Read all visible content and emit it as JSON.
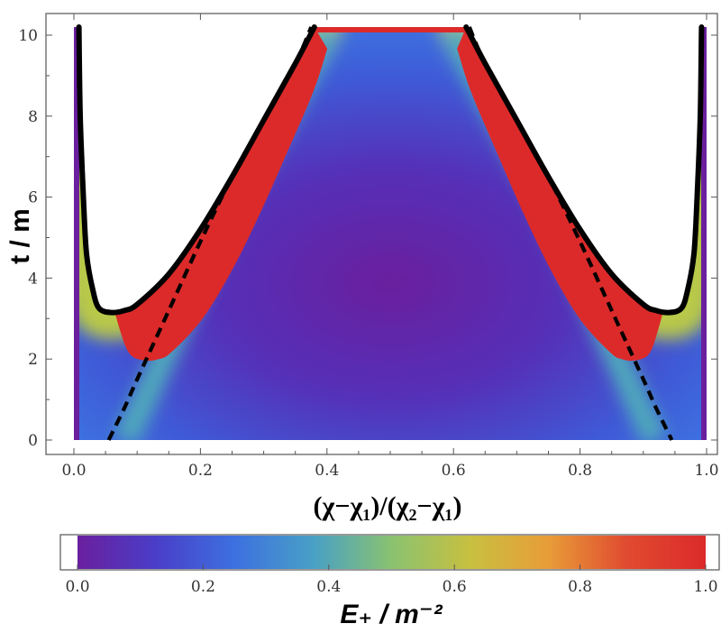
{
  "chart_data": {
    "type": "heatmap",
    "title": "",
    "xlabel": "(χ−χ₁)/(χ₂−χ₁)",
    "ylabel": "t / m",
    "xlim": [
      0,
      1
    ],
    "ylim": [
      0,
      10.2
    ],
    "x_ticks": [
      "0.0",
      "0.2",
      "0.4",
      "0.6",
      "0.8",
      "1.0"
    ],
    "y_ticks": [
      "0",
      "2",
      "4",
      "6",
      "8",
      "10"
    ],
    "colorbar": {
      "label": "E₊ / m⁻²",
      "range": [
        0,
        1
      ],
      "ticks": [
        "0.0",
        "0.2",
        "0.4",
        "0.6",
        "0.8",
        "1.0"
      ],
      "colormap": [
        "#6a1f9e",
        "#4a3ec8",
        "#3d70e0",
        "#48a0c6",
        "#8ac270",
        "#c8c040",
        "#e89c38",
        "#e04a30",
        "#dc2a2a"
      ]
    },
    "series": [
      {
        "style": "solid",
        "color": "#000000",
        "x": [
          0.008,
          0.01,
          0.015,
          0.02,
          0.03,
          0.04,
          0.06,
          0.08,
          0.1,
          0.15,
          0.2,
          0.25,
          0.3,
          0.35,
          0.38
        ],
        "y": [
          10.2,
          8.0,
          6.0,
          4.6,
          3.7,
          3.25,
          3.15,
          3.2,
          3.35,
          4.1,
          5.2,
          6.5,
          7.9,
          9.3,
          10.2
        ]
      },
      {
        "style": "solid",
        "color": "#000000",
        "x": [
          0.62,
          0.65,
          0.7,
          0.75,
          0.8,
          0.85,
          0.9,
          0.92,
          0.94,
          0.96,
          0.97,
          0.98,
          0.985,
          0.99,
          0.992
        ],
        "y": [
          10.2,
          9.3,
          7.9,
          6.5,
          5.2,
          4.1,
          3.35,
          3.2,
          3.15,
          3.25,
          3.7,
          4.6,
          6.0,
          8.0,
          10.2
        ]
      },
      {
        "style": "dashed",
        "color": "#000000",
        "x": [
          0.055,
          0.08,
          0.1,
          0.15,
          0.2,
          0.25,
          0.3,
          0.35,
          0.375
        ],
        "y": [
          0,
          0.8,
          1.5,
          3.2,
          4.9,
          6.5,
          7.9,
          9.3,
          10.2
        ]
      },
      {
        "style": "dashed",
        "color": "#000000",
        "x": [
          0.625,
          0.65,
          0.7,
          0.75,
          0.8,
          0.85,
          0.9,
          0.92,
          0.945
        ],
        "y": [
          10.2,
          9.3,
          7.9,
          6.5,
          4.9,
          3.2,
          1.5,
          0.8,
          0
        ]
      }
    ]
  }
}
